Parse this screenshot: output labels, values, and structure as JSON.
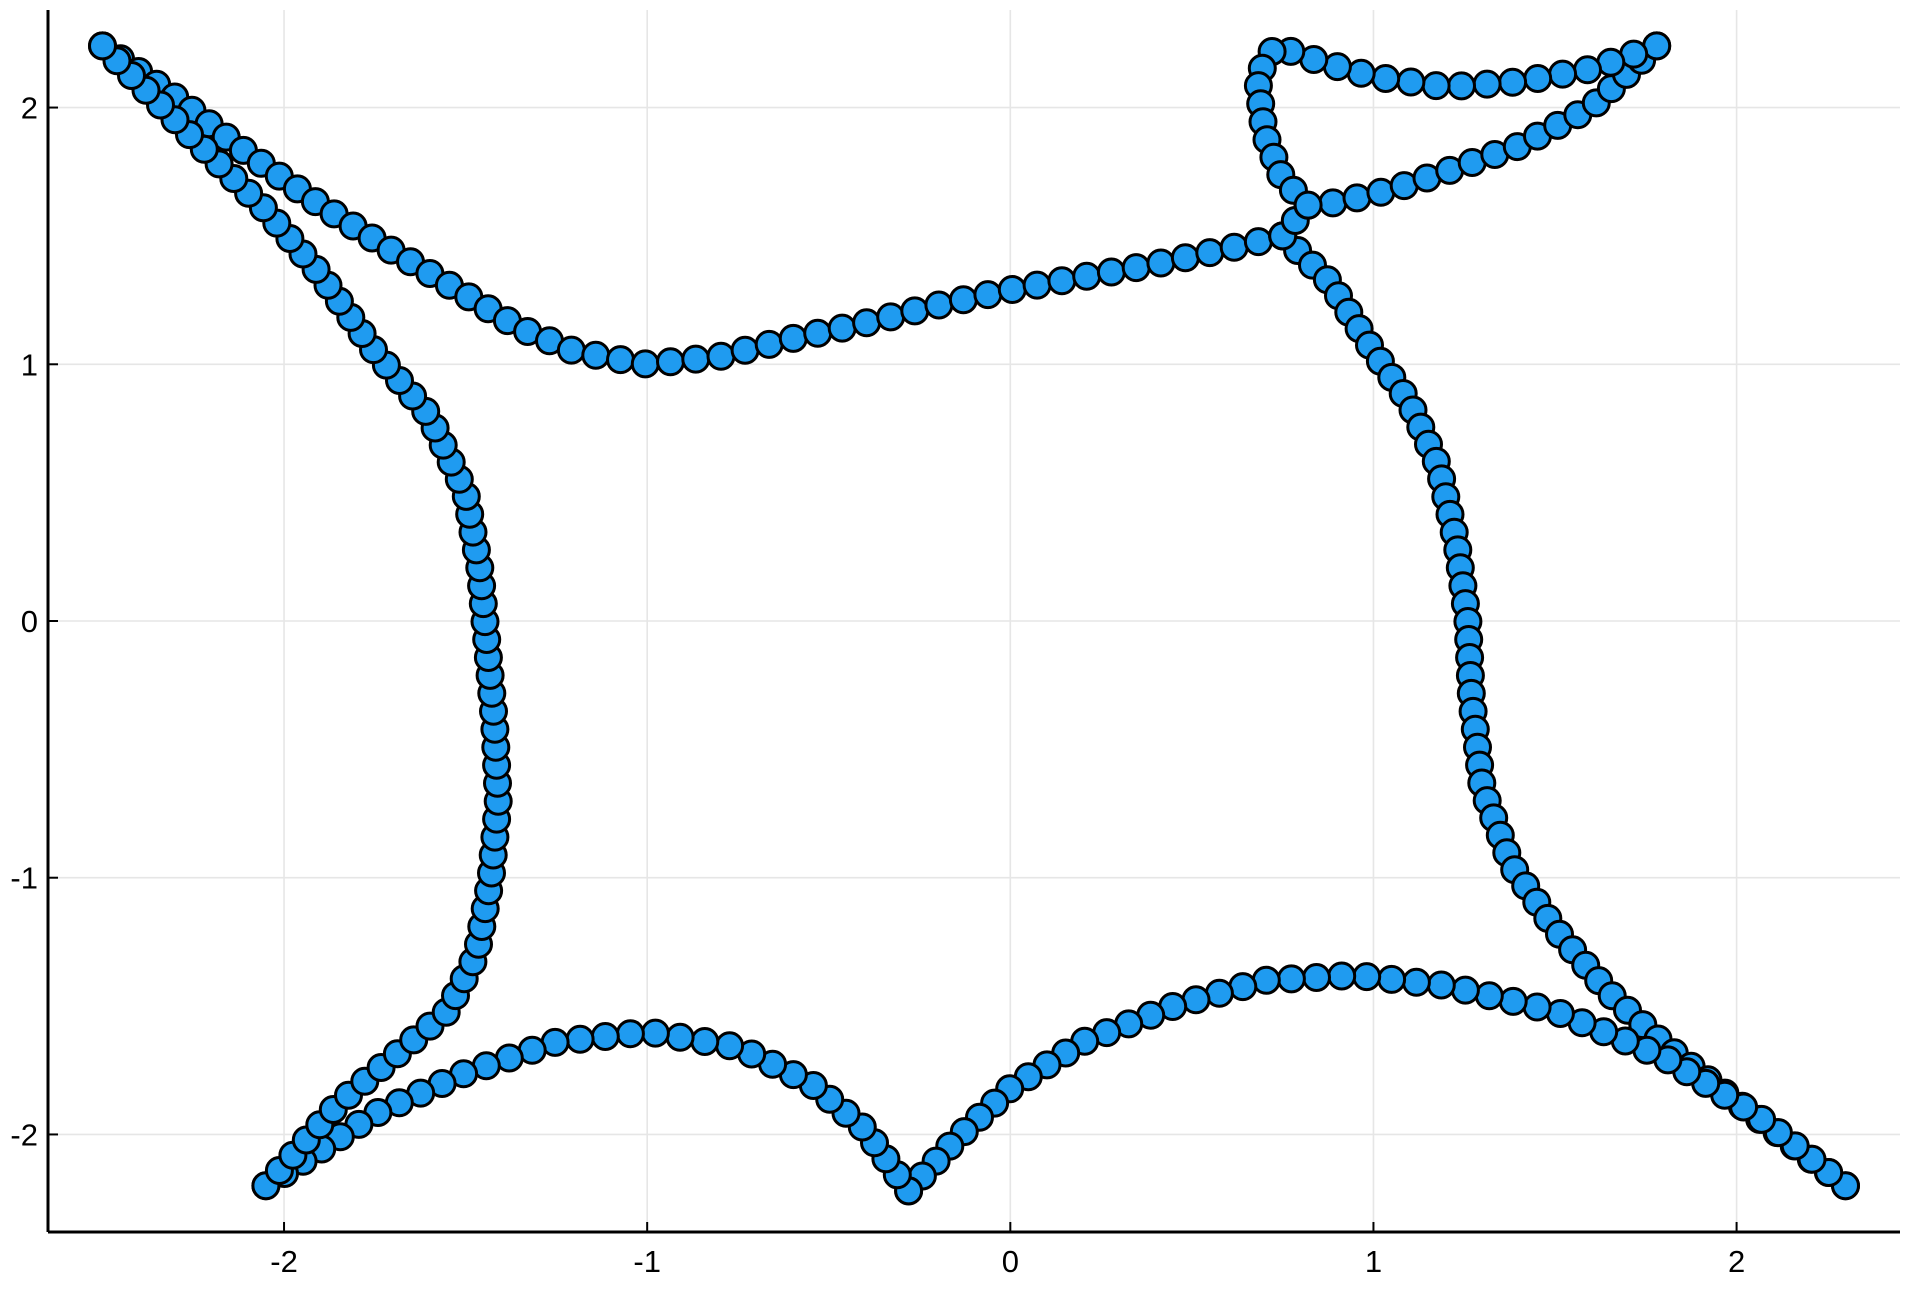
{
  "chart_data": {
    "type": "scatter",
    "title": "",
    "xlabel": "",
    "ylabel": "",
    "xlim": [
      -2.65,
      2.45
    ],
    "ylim": [
      -2.38,
      2.38
    ],
    "xticks": [
      -2,
      -1,
      0,
      1,
      2
    ],
    "yticks": [
      2,
      1,
      0,
      -1,
      -2
    ],
    "xtick_labels": [
      "-2",
      "-1",
      "0",
      "1",
      "2"
    ],
    "ytick_labels": [
      "2",
      "1",
      "0",
      "-1",
      "-2"
    ],
    "grid": true,
    "legend": "none",
    "marker_color": "#1f9bf0",
    "marker_edge_color": "#000000",
    "series": [
      {
        "curves": [
          [
            [
              -2.5,
              2.24
            ],
            [
              -2.3,
              2.04
            ],
            [
              -2.1,
              1.82
            ],
            [
              -1.9,
              1.62
            ],
            [
              -1.7,
              1.44
            ],
            [
              -1.5,
              1.27
            ],
            [
              -1.35,
              1.14
            ],
            [
              -1.2,
              1.05
            ],
            [
              -1.0,
              1.0
            ],
            [
              -0.8,
              1.03
            ],
            [
              -0.6,
              1.1
            ],
            [
              -0.4,
              1.16
            ],
            [
              -0.2,
              1.23
            ],
            [
              0.0,
              1.29
            ],
            [
              0.2,
              1.34
            ],
            [
              0.4,
              1.39
            ],
            [
              0.6,
              1.45
            ],
            [
              0.75,
              1.5
            ]
          ],
          [
            [
              0.75,
              1.5
            ],
            [
              0.88,
              1.32
            ],
            [
              1.0,
              1.05
            ],
            [
              1.1,
              0.85
            ],
            [
              1.18,
              0.6
            ],
            [
              1.23,
              0.3
            ],
            [
              1.26,
              0.0
            ],
            [
              1.27,
              -0.3
            ],
            [
              1.3,
              -0.65
            ],
            [
              1.38,
              -0.95
            ],
            [
              1.5,
              -1.2
            ],
            [
              1.65,
              -1.45
            ],
            [
              1.8,
              -1.65
            ],
            [
              1.95,
              -1.82
            ],
            [
              2.1,
              -1.98
            ],
            [
              2.3,
              -2.2
            ]
          ],
          [
            [
              2.3,
              -2.2
            ],
            [
              2.05,
              -1.92
            ],
            [
              1.8,
              -1.7
            ],
            [
              1.5,
              -1.52
            ],
            [
              1.2,
              -1.42
            ],
            [
              0.95,
              -1.38
            ],
            [
              0.7,
              -1.4
            ],
            [
              0.45,
              -1.5
            ],
            [
              0.2,
              -1.64
            ],
            [
              0.0,
              -1.82
            ],
            [
              -0.15,
              -2.02
            ],
            [
              -0.28,
              -2.22
            ]
          ],
          [
            [
              -0.28,
              -2.22
            ],
            [
              -0.4,
              -1.98
            ],
            [
              -0.55,
              -1.8
            ],
            [
              -0.75,
              -1.66
            ],
            [
              -1.0,
              -1.6
            ],
            [
              -1.25,
              -1.64
            ],
            [
              -1.5,
              -1.76
            ],
            [
              -1.75,
              -1.92
            ],
            [
              -2.05,
              -2.2
            ]
          ],
          [
            [
              -2.05,
              -2.2
            ],
            [
              -1.85,
              -1.88
            ],
            [
              -1.7,
              -1.7
            ],
            [
              -1.55,
              -1.52
            ],
            [
              -1.47,
              -1.3
            ],
            [
              -1.43,
              -1.0
            ],
            [
              -1.41,
              -0.7
            ],
            [
              -1.42,
              -0.4
            ],
            [
              -1.44,
              -0.1
            ],
            [
              -1.46,
              0.2
            ],
            [
              -1.5,
              0.5
            ],
            [
              -1.6,
              0.8
            ],
            [
              -1.75,
              1.05
            ],
            [
              -1.9,
              1.35
            ],
            [
              -2.05,
              1.6
            ],
            [
              -2.25,
              1.88
            ],
            [
              -2.5,
              2.24
            ]
          ],
          [
            [
              0.75,
              1.5
            ],
            [
              0.82,
              1.62
            ],
            [
              0.9,
              1.63
            ],
            [
              1.05,
              1.68
            ],
            [
              1.2,
              1.75
            ],
            [
              1.4,
              1.85
            ],
            [
              1.6,
              2.0
            ],
            [
              1.78,
              2.24
            ]
          ],
          [
            [
              1.78,
              2.24
            ],
            [
              1.6,
              2.15
            ],
            [
              1.4,
              2.1
            ],
            [
              1.2,
              2.08
            ],
            [
              1.0,
              2.12
            ],
            [
              0.85,
              2.18
            ],
            [
              0.73,
              2.24
            ],
            [
              0.68,
              2.12
            ],
            [
              0.7,
              1.9
            ],
            [
              0.75,
              1.72
            ],
            [
              0.82,
              1.62
            ]
          ]
        ],
        "spacing": [
          0.07,
          0.07,
          0.07,
          0.07,
          0.07,
          0.07,
          0.07
        ]
      }
    ]
  }
}
